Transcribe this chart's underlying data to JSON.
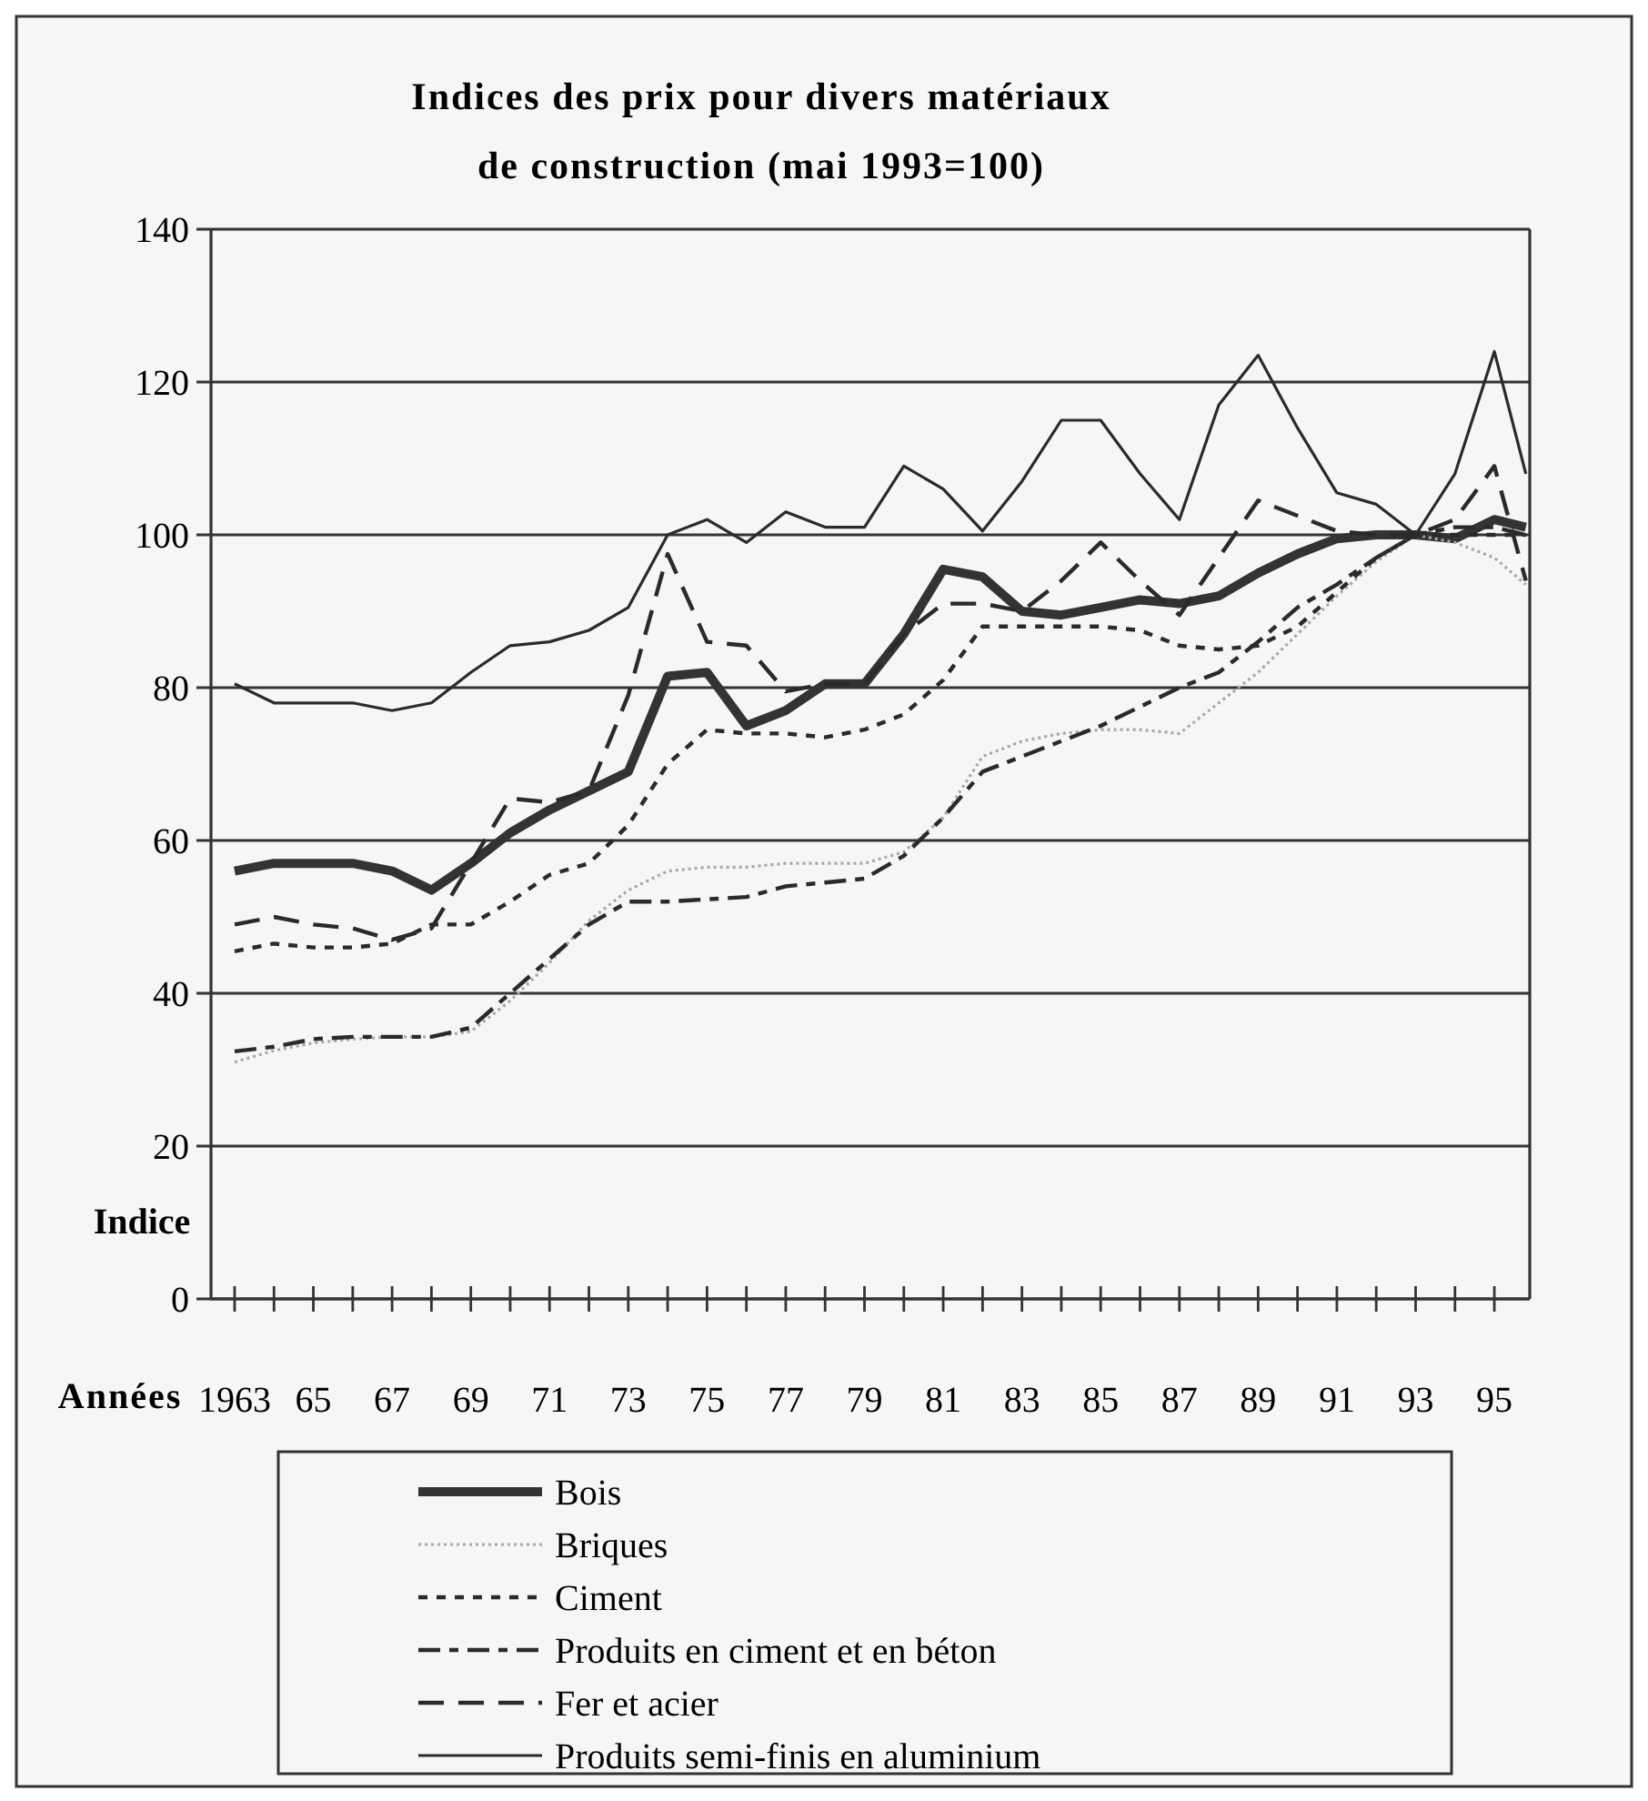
{
  "chart_data": {
    "type": "line",
    "title": "Indices des prix pour divers matériaux de construction (mai 1993=100)",
    "xlabel": "Années",
    "ylabel": "Indice",
    "x": [
      1963,
      1964,
      1965,
      1966,
      1967,
      1968,
      1969,
      1970,
      1971,
      1972,
      1973,
      1974,
      1975,
      1976,
      1977,
      1978,
      1979,
      1980,
      1981,
      1982,
      1983,
      1984,
      1985,
      1986,
      1987,
      1988,
      1989,
      1990,
      1991,
      1992,
      1993,
      1994,
      1995,
      1995.8
    ],
    "xlim": [
      1962.4,
      1995.9
    ],
    "xticks": [
      {
        "value": 1963,
        "label": "1963"
      },
      {
        "value": 1964,
        "label": null
      },
      {
        "value": 1965,
        "label": "65"
      },
      {
        "value": 1966,
        "label": null
      },
      {
        "value": 1967,
        "label": "67"
      },
      {
        "value": 1968,
        "label": null
      },
      {
        "value": 1969,
        "label": "69"
      },
      {
        "value": 1970,
        "label": null
      },
      {
        "value": 1971,
        "label": "71"
      },
      {
        "value": 1972,
        "label": null
      },
      {
        "value": 1973,
        "label": "73"
      },
      {
        "value": 1974,
        "label": null
      },
      {
        "value": 1975,
        "label": "75"
      },
      {
        "value": 1976,
        "label": null
      },
      {
        "value": 1977,
        "label": "77"
      },
      {
        "value": 1978,
        "label": null
      },
      {
        "value": 1979,
        "label": "79"
      },
      {
        "value": 1980,
        "label": null
      },
      {
        "value": 1981,
        "label": "81"
      },
      {
        "value": 1982,
        "label": null
      },
      {
        "value": 1983,
        "label": "83"
      },
      {
        "value": 1984,
        "label": null
      },
      {
        "value": 1985,
        "label": "85"
      },
      {
        "value": 1986,
        "label": null
      },
      {
        "value": 1987,
        "label": "87"
      },
      {
        "value": 1988,
        "label": null
      },
      {
        "value": 1989,
        "label": "89"
      },
      {
        "value": 1990,
        "label": null
      },
      {
        "value": 1991,
        "label": "91"
      },
      {
        "value": 1992,
        "label": null
      },
      {
        "value": 1993,
        "label": "93"
      },
      {
        "value": 1994,
        "label": null
      },
      {
        "value": 1995,
        "label": "95"
      }
    ],
    "ylim": [
      0,
      140
    ],
    "yticks": [
      0,
      20,
      40,
      60,
      80,
      100,
      120,
      140
    ],
    "grid": "y",
    "legend": "bottom",
    "marker": "none",
    "series": [
      {
        "name": "Bois",
        "color": "#333333",
        "line_style": "solid",
        "values": [
          56,
          57,
          57,
          57,
          56,
          53.5,
          57,
          61,
          64,
          66.5,
          69,
          81.5,
          82,
          75,
          77,
          80.5,
          80.5,
          87,
          95.5,
          94.5,
          90,
          89.5,
          90.5,
          91.5,
          91,
          92,
          95,
          97.5,
          99.5,
          100,
          100,
          99.5,
          102,
          101
        ]
      },
      {
        "name": "Briques",
        "color": "#a8a8a8",
        "line_style": "dotted",
        "values": [
          31,
          32.5,
          33.5,
          34,
          34.3,
          34.3,
          35,
          39,
          44,
          49.5,
          53.5,
          56,
          56.5,
          56.5,
          57,
          57,
          57,
          58.5,
          63,
          71,
          73,
          74,
          74.5,
          74.5,
          74,
          78,
          82,
          87,
          92,
          96.5,
          100,
          99,
          97,
          93.5
        ]
      },
      {
        "name": "Ciment",
        "color": "#2a2a2a",
        "line_style": "dashed",
        "values": [
          45.5,
          46.5,
          46,
          46,
          46.5,
          49,
          49,
          52,
          55.5,
          57,
          62,
          70,
          74.5,
          74,
          74,
          73.5,
          74.5,
          76.5,
          81,
          88,
          88,
          88,
          88,
          87.5,
          85.5,
          85,
          85.5,
          88,
          92.5,
          97,
          100,
          100,
          100,
          100
        ]
      },
      {
        "name": "Produits en ciment et en béton",
        "color": "#2a2a2a",
        "line_style": "dashed",
        "values": [
          32.4,
          33,
          34,
          34.3,
          34.3,
          34.3,
          35.5,
          40,
          44.5,
          49,
          52,
          52,
          52.3,
          52.6,
          54,
          54.5,
          55,
          58,
          63,
          69,
          71,
          73,
          75,
          77.5,
          80,
          82,
          86,
          90.5,
          93.5,
          97,
          100,
          101,
          101,
          100
        ]
      },
      {
        "name": "Fer et acier",
        "color": "#2a2a2a",
        "line_style": "dashed",
        "values": [
          49,
          50,
          49,
          48.5,
          47,
          48.5,
          57,
          65.5,
          65,
          66.5,
          79,
          97.5,
          86,
          85.5,
          79.5,
          80.5,
          80.5,
          87,
          91,
          91,
          90,
          94,
          99,
          94,
          89.5,
          97,
          104.5,
          102.5,
          100.5,
          100,
          100,
          102,
          109,
          94
        ]
      },
      {
        "name": "Produits semi-finis en aluminium",
        "color": "#2a2a2a",
        "line_style": "solid",
        "values": [
          80.5,
          78,
          78,
          78,
          77,
          78,
          82,
          85.5,
          86,
          87.5,
          90.5,
          100,
          102,
          99,
          103,
          101,
          101,
          109,
          106,
          100.5,
          107,
          115,
          115,
          108,
          102,
          117,
          123.5,
          114,
          105.5,
          104,
          100,
          108,
          124,
          108
        ]
      }
    ]
  }
}
